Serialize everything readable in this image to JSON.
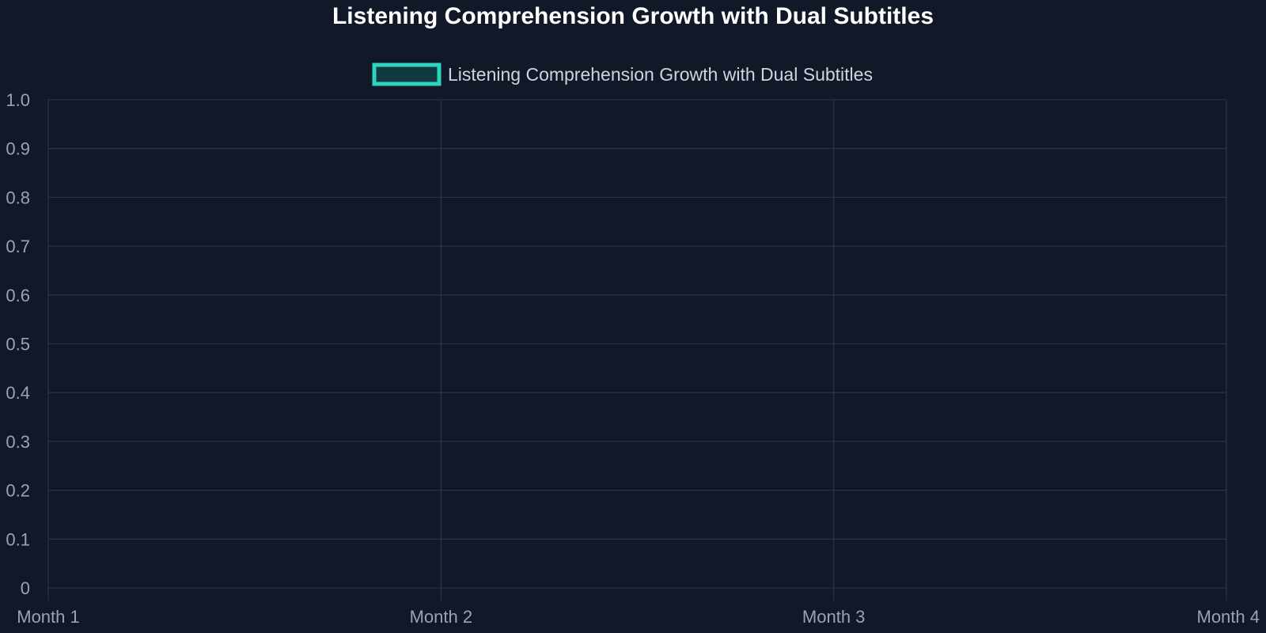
{
  "chart_data": {
    "type": "line",
    "title": "Listening Comprehension Growth with Dual Subtitles",
    "categories": [
      "Month 1",
      "Month 2",
      "Month 3",
      "Month 4"
    ],
    "series": [
      {
        "name": "Listening Comprehension Growth with Dual Subtitles",
        "values": [
          null,
          null,
          null,
          null
        ],
        "color": "#2dd4bf",
        "fill": "#113a40"
      }
    ],
    "y_ticks": [
      "0",
      "0.1",
      "0.2",
      "0.3",
      "0.4",
      "0.5",
      "0.6",
      "0.7",
      "0.8",
      "0.9",
      "1.0"
    ],
    "ylim": [
      0,
      1
    ],
    "grid": true,
    "legend_position": "top-center",
    "xlabel": "",
    "ylabel": ""
  },
  "colors": {
    "background": "#111827",
    "grid": "#2b3341",
    "tick_text": "#9ca3af",
    "title_text": "#ffffff",
    "legend_text": "#d1d5db"
  }
}
